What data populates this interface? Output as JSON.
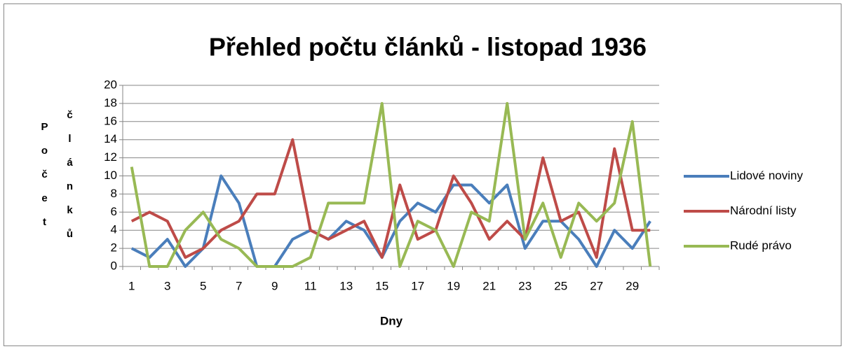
{
  "chart_data": {
    "type": "line",
    "title": "Přehled počtu článků - listopad 1936",
    "x_label": "Dny",
    "y_label": "Počet článků",
    "categories": [
      "1",
      null,
      "3",
      null,
      "5",
      null,
      "7",
      null,
      "9",
      null,
      "11",
      null,
      "13",
      null,
      "15",
      null,
      "17",
      null,
      "19",
      null,
      "21",
      null,
      "23",
      null,
      "25",
      null,
      "27",
      null,
      "29",
      null
    ],
    "series": [
      {
        "name": "Lidové noviny",
        "color": "#4a7ebb",
        "values": [
          2,
          1,
          3,
          0,
          2,
          10,
          7,
          0,
          0,
          3,
          4,
          3,
          5,
          4,
          1,
          5,
          7,
          6,
          9,
          9,
          7,
          9,
          2,
          5,
          5,
          3,
          0,
          4,
          2,
          5
        ]
      },
      {
        "name": "Národní listy",
        "color": "#be4b48",
        "values": [
          5,
          6,
          5,
          1,
          2,
          4,
          5,
          8,
          8,
          14,
          4,
          3,
          4,
          5,
          1,
          9,
          3,
          4,
          10,
          7,
          3,
          5,
          3,
          12,
          5,
          6,
          1,
          13,
          4,
          4
        ]
      },
      {
        "name": "Rudé právo",
        "color": "#98b954",
        "values": [
          11,
          0,
          0,
          4,
          6,
          3,
          2,
          0,
          0,
          0,
          1,
          7,
          7,
          7,
          18,
          0,
          5,
          4,
          0,
          6,
          5,
          18,
          3,
          7,
          1,
          7,
          5,
          7,
          16,
          0
        ]
      }
    ],
    "ylim": [
      0,
      20
    ],
    "yticks": [
      0,
      2,
      4,
      6,
      8,
      10,
      12,
      14,
      16,
      18,
      20
    ],
    "grid": true,
    "legend": "right"
  }
}
